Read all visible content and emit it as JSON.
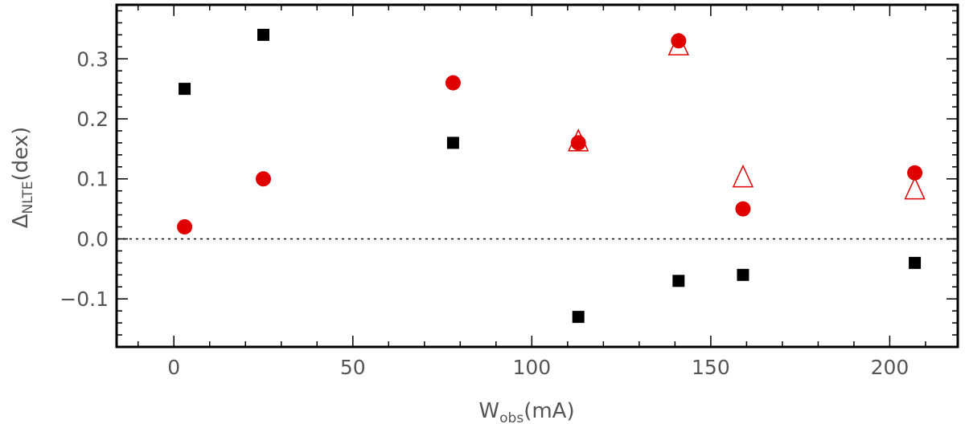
{
  "chart_data": {
    "type": "scatter",
    "title": "",
    "xlabel": {
      "main": "W",
      "sub": "obs",
      "unit": "(mA)"
    },
    "ylabel": {
      "main": "Δ",
      "sub": "NLTE",
      "unit": "(dex)"
    },
    "xlim": [
      -16,
      219
    ],
    "ylim": [
      -0.18,
      0.39
    ],
    "xticks": [
      0,
      50,
      100,
      150,
      200
    ],
    "xtick_labels": [
      "0",
      "50",
      "100",
      "150",
      "200"
    ],
    "yticks": [
      -0.1,
      0.0,
      0.1,
      0.2,
      0.3
    ],
    "ytick_labels": [
      "−0.1",
      "0.0",
      "0.1",
      "0.2",
      "0.3"
    ],
    "x_minor_step": 10,
    "y_minor_step": 0.02,
    "reference_line": {
      "y": 0.0,
      "style": "dotted"
    },
    "grid": false,
    "legend": "none",
    "series": [
      {
        "marker": "square-filled",
        "color": "#000000",
        "points": [
          [
            3,
            0.25
          ],
          [
            25,
            0.34
          ],
          [
            78,
            0.16
          ],
          [
            113,
            -0.13
          ],
          [
            141,
            -0.07
          ],
          [
            159,
            -0.06
          ],
          [
            207,
            -0.04
          ]
        ]
      },
      {
        "marker": "triangle-open",
        "color": "#e00000",
        "points": [
          [
            113,
            0.16
          ],
          [
            141,
            0.32
          ],
          [
            159,
            0.1
          ],
          [
            207,
            0.08
          ]
        ]
      },
      {
        "marker": "circle-filled",
        "color": "#e00000",
        "points": [
          [
            3,
            0.02
          ],
          [
            25,
            0.1
          ],
          [
            78,
            0.26
          ],
          [
            113,
            0.16
          ],
          [
            141,
            0.33
          ],
          [
            159,
            0.05
          ],
          [
            207,
            0.11
          ]
        ]
      }
    ]
  }
}
